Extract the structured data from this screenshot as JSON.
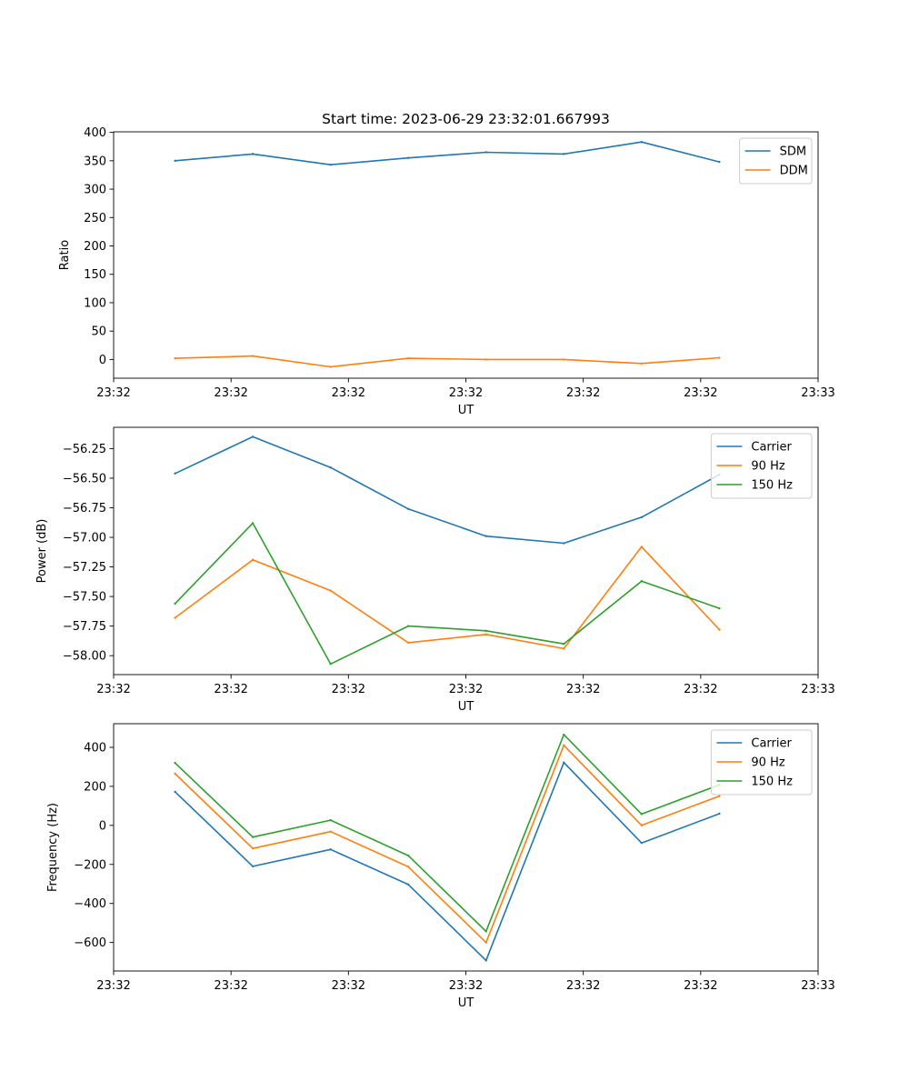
{
  "figure": {
    "title": "Start time: 2023-06-29 23:32:01.667993"
  },
  "colors": {
    "blue": "#1f77b4",
    "orange": "#ff7f0e",
    "green": "#2ca02c"
  },
  "chart_data": [
    {
      "type": "line",
      "title": "Start time: 2023-06-29 23:32:01.667993",
      "xlabel": "UT",
      "ylabel": "Ratio",
      "x_tick_labels": [
        "23:32",
        "23:32",
        "23:32",
        "23:32",
        "23:32",
        "23:32",
        "23:33"
      ],
      "x_index": [
        1,
        2,
        3,
        4,
        5,
        6,
        7,
        8
      ],
      "xlim": [
        0.21,
        9.27
      ],
      "ylim": [
        -33,
        401
      ],
      "yticks": [
        0,
        50,
        100,
        150,
        200,
        250,
        300,
        350,
        400
      ],
      "grid": false,
      "legend_position": "top-right",
      "series": [
        {
          "name": "SDM",
          "color": "blue",
          "values": [
            350,
            362,
            343,
            355,
            365,
            362,
            383,
            348
          ]
        },
        {
          "name": "DDM",
          "color": "orange",
          "values": [
            2,
            6,
            -13,
            2,
            0,
            0,
            -7,
            3
          ]
        }
      ]
    },
    {
      "type": "line",
      "xlabel": "UT",
      "ylabel": "Power (dB)",
      "x_tick_labels": [
        "23:32",
        "23:32",
        "23:32",
        "23:32",
        "23:32",
        "23:32",
        "23:33"
      ],
      "x_index": [
        1,
        2,
        3,
        4,
        5,
        6,
        7,
        8
      ],
      "xlim": [
        0.21,
        9.27
      ],
      "ylim": [
        -58.16,
        -56.07
      ],
      "yticks": [
        -58.0,
        -57.75,
        -57.5,
        -57.25,
        -57.0,
        -56.75,
        -56.5,
        -56.25
      ],
      "ytick_labels": [
        "−58.00",
        "−57.75",
        "−57.50",
        "−57.25",
        "−57.00",
        "−56.75",
        "−56.50",
        "−56.25"
      ],
      "grid": false,
      "legend_position": "top-right",
      "series": [
        {
          "name": "Carrier",
          "color": "blue",
          "values": [
            -56.46,
            -56.15,
            -56.41,
            -56.76,
            -56.99,
            -57.05,
            -56.83,
            -56.47
          ]
        },
        {
          "name": "90 Hz",
          "color": "orange",
          "values": [
            -57.68,
            -57.19,
            -57.45,
            -57.89,
            -57.82,
            -57.94,
            -57.08,
            -57.78
          ]
        },
        {
          "name": "150 Hz",
          "color": "green",
          "values": [
            -57.56,
            -56.88,
            -58.07,
            -57.75,
            -57.79,
            -57.9,
            -57.37,
            -57.6
          ]
        }
      ]
    },
    {
      "type": "line",
      "xlabel": "UT",
      "ylabel": "Frequency (Hz)",
      "x_tick_labels": [
        "23:32",
        "23:32",
        "23:32",
        "23:32",
        "23:32",
        "23:32",
        "23:33"
      ],
      "x_index": [
        1,
        2,
        3,
        4,
        5,
        6,
        7,
        8
      ],
      "xlim": [
        0.21,
        9.27
      ],
      "ylim": [
        -746,
        521
      ],
      "yticks": [
        -600,
        -400,
        -200,
        0,
        200,
        400
      ],
      "ytick_labels": [
        "−600",
        "−400",
        "−200",
        "0",
        "200",
        "400"
      ],
      "grid": false,
      "legend_position": "top-right",
      "series": [
        {
          "name": "Carrier",
          "color": "blue",
          "values": [
            172,
            -210,
            -123,
            -303,
            -692,
            322,
            -90,
            60
          ]
        },
        {
          "name": "90 Hz",
          "color": "orange",
          "values": [
            265,
            -118,
            -32,
            -212,
            -600,
            410,
            0,
            150
          ]
        },
        {
          "name": "150 Hz",
          "color": "green",
          "values": [
            320,
            -60,
            27,
            -155,
            -543,
            465,
            58,
            208
          ]
        }
      ]
    }
  ]
}
